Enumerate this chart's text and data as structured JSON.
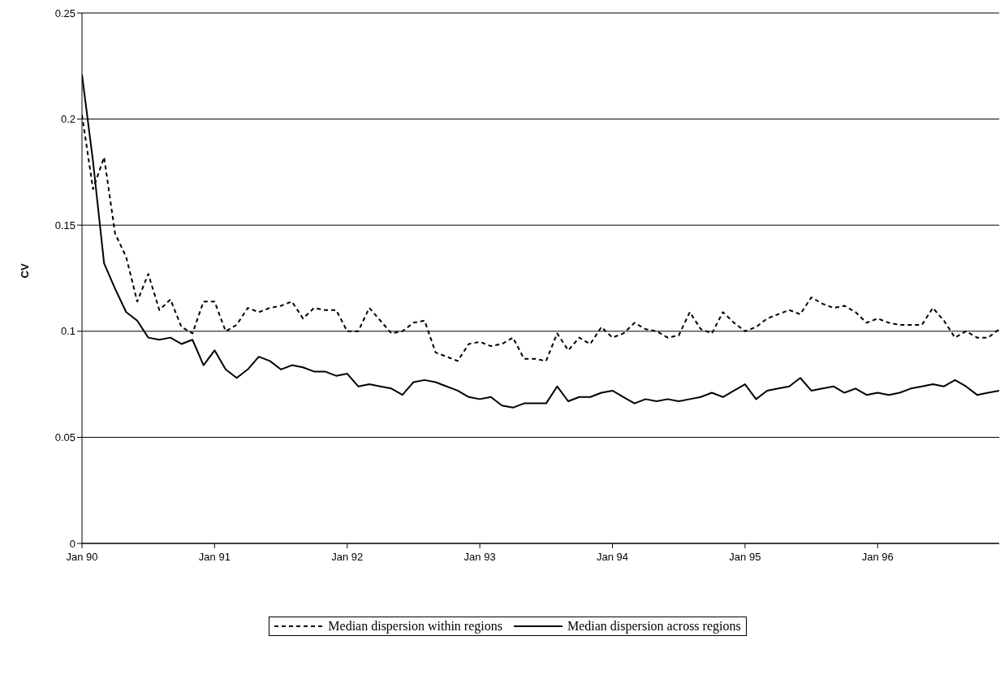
{
  "chart_data": {
    "type": "line",
    "ylabel": "CV",
    "legend": "bottom",
    "grid": "y",
    "marker": "none",
    "x": [
      "1990-01",
      "1990-02",
      "1990-03",
      "1990-04",
      "1990-05",
      "1990-06",
      "1990-07",
      "1990-08",
      "1990-09",
      "1990-10",
      "1990-11",
      "1990-12",
      "1991-01",
      "1991-02",
      "1991-03",
      "1991-04",
      "1991-05",
      "1991-06",
      "1991-07",
      "1991-08",
      "1991-09",
      "1991-10",
      "1991-11",
      "1991-12",
      "1992-01",
      "1992-02",
      "1992-03",
      "1992-04",
      "1992-05",
      "1992-06",
      "1992-07",
      "1992-08",
      "1992-09",
      "1992-10",
      "1992-11",
      "1992-12",
      "1993-01",
      "1993-02",
      "1993-03",
      "1993-04",
      "1993-05",
      "1993-06",
      "1993-07",
      "1993-08",
      "1993-09",
      "1993-10",
      "1993-11",
      "1993-12",
      "1994-01",
      "1994-02",
      "1994-03",
      "1994-04",
      "1994-05",
      "1994-06",
      "1994-07",
      "1994-08",
      "1994-09",
      "1994-10",
      "1994-11",
      "1994-12",
      "1995-01",
      "1995-02",
      "1995-03",
      "1995-04",
      "1995-05",
      "1995-06",
      "1995-07",
      "1995-08",
      "1995-09",
      "1995-10",
      "1995-11",
      "1995-12",
      "1996-01",
      "1996-02",
      "1996-03",
      "1996-04",
      "1996-05",
      "1996-06",
      "1996-07",
      "1996-08",
      "1996-09",
      "1996-10",
      "1996-11",
      "1996-12"
    ],
    "series": [
      {
        "name": "Median dispersion within regions",
        "color": "#000000",
        "line_style": "dashed",
        "values": [
          0.202,
          0.167,
          0.182,
          0.146,
          0.135,
          0.114,
          0.127,
          0.11,
          0.115,
          0.102,
          0.099,
          0.114,
          0.114,
          0.1,
          0.103,
          0.111,
          0.109,
          0.111,
          0.112,
          0.114,
          0.106,
          0.111,
          0.11,
          0.11,
          0.1,
          0.1,
          0.111,
          0.105,
          0.099,
          0.1,
          0.104,
          0.105,
          0.09,
          0.088,
          0.086,
          0.094,
          0.095,
          0.093,
          0.094,
          0.097,
          0.087,
          0.087,
          0.086,
          0.099,
          0.091,
          0.097,
          0.094,
          0.102,
          0.097,
          0.099,
          0.104,
          0.101,
          0.1,
          0.097,
          0.098,
          0.109,
          0.101,
          0.099,
          0.109,
          0.104,
          0.1,
          0.102,
          0.106,
          0.108,
          0.11,
          0.108,
          0.116,
          0.113,
          0.111,
          0.112,
          0.109,
          0.104,
          0.106,
          0.104,
          0.103,
          0.103,
          0.103,
          0.111,
          0.105,
          0.097,
          0.1,
          0.097,
          0.097,
          0.101
        ]
      },
      {
        "name": "Median dispersion across regions",
        "color": "#000000",
        "line_style": "solid",
        "values": [
          0.221,
          0.18,
          0.132,
          0.12,
          0.109,
          0.105,
          0.097,
          0.096,
          0.097,
          0.094,
          0.096,
          0.084,
          0.091,
          0.082,
          0.078,
          0.082,
          0.088,
          0.086,
          0.082,
          0.084,
          0.083,
          0.081,
          0.081,
          0.079,
          0.08,
          0.074,
          0.075,
          0.074,
          0.073,
          0.07,
          0.076,
          0.077,
          0.076,
          0.074,
          0.072,
          0.069,
          0.068,
          0.069,
          0.065,
          0.064,
          0.066,
          0.066,
          0.066,
          0.074,
          0.067,
          0.069,
          0.069,
          0.071,
          0.072,
          0.069,
          0.066,
          0.068,
          0.067,
          0.068,
          0.067,
          0.068,
          0.069,
          0.071,
          0.069,
          0.072,
          0.075,
          0.068,
          0.072,
          0.073,
          0.074,
          0.078,
          0.072,
          0.073,
          0.074,
          0.071,
          0.073,
          0.07,
          0.071,
          0.07,
          0.071,
          0.073,
          0.074,
          0.075,
          0.074,
          0.077,
          0.074,
          0.07,
          0.071,
          0.072
        ]
      }
    ],
    "xlim": [
      "1990-01",
      "1996-12"
    ],
    "xticks": [
      {
        "value": "1990-01",
        "label": "Jan 90"
      },
      {
        "value": "1991-01",
        "label": "Jan 91"
      },
      {
        "value": "1992-01",
        "label": "Jan 92"
      },
      {
        "value": "1993-01",
        "label": "Jan 93"
      },
      {
        "value": "1994-01",
        "label": "Jan 94"
      },
      {
        "value": "1995-01",
        "label": "Jan 95"
      },
      {
        "value": "1996-01",
        "label": "Jan 96"
      }
    ],
    "ylim": [
      0,
      0.25
    ],
    "yticks": [
      0,
      0.05,
      0.1,
      0.15,
      0.2,
      0.25
    ]
  }
}
